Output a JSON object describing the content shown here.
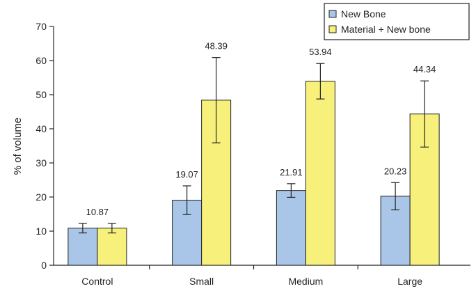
{
  "chart_data": {
    "type": "bar",
    "title": "",
    "xlabel": "",
    "ylabel": "% of volume",
    "ylim": [
      0,
      70
    ],
    "yticks": [
      0,
      10,
      20,
      30,
      40,
      50,
      60,
      70
    ],
    "grid": false,
    "legend_position": "top-right",
    "categories": [
      "Control",
      "Small",
      "Medium",
      "Large"
    ],
    "series": [
      {
        "name": "New Bone",
        "color": "#a9c6e8",
        "values": [
          10.87,
          19.07,
          21.91,
          20.23
        ],
        "errors": [
          1.4,
          4.2,
          2.0,
          4.0
        ],
        "labels": [
          "10.87",
          "19.07",
          "21.91",
          "20.23"
        ]
      },
      {
        "name": "Material + New bone",
        "color": "#f7f07a",
        "values": [
          10.87,
          48.39,
          53.94,
          44.34
        ],
        "errors": [
          1.4,
          12.5,
          5.2,
          9.7
        ],
        "labels": [
          "",
          "48.39",
          "53.94",
          "44.34"
        ]
      }
    ]
  }
}
